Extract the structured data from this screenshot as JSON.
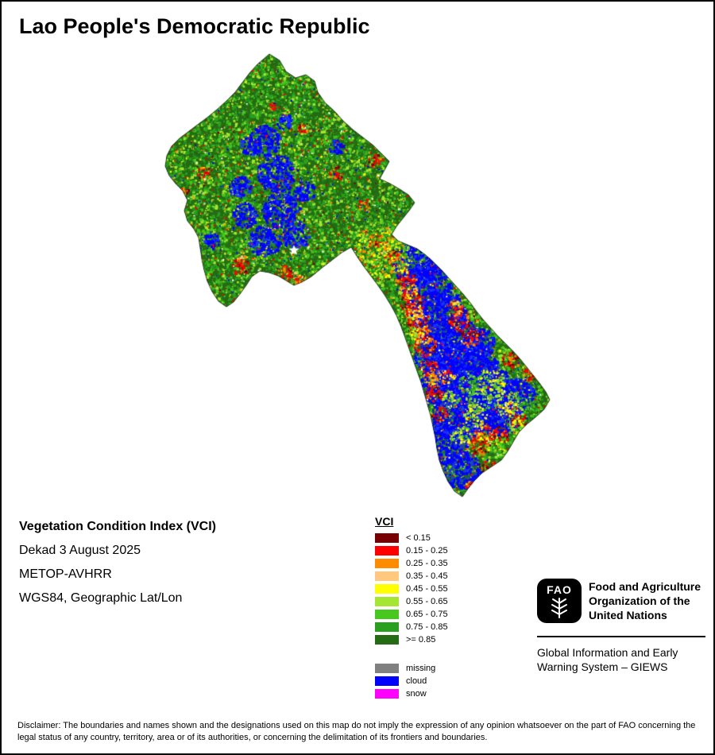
{
  "page": {
    "title": "Lao People's Democratic Republic"
  },
  "info_panel": {
    "line1": "Vegetation Condition Index (VCI)",
    "line2": "Dekad 3 August 2025",
    "line3": "METOP-AVHRR",
    "line4": "WGS84, Geographic Lat/Lon"
  },
  "legend": {
    "title": "VCI",
    "classes": [
      {
        "label": "< 0.15",
        "color": "#780000"
      },
      {
        "label": "0.15 - 0.25",
        "color": "#FF0000"
      },
      {
        "label": "0.25 - 0.35",
        "color": "#FF8C00"
      },
      {
        "label": "0.35 - 0.45",
        "color": "#FFC87D"
      },
      {
        "label": "0.45 - 0.55",
        "color": "#FFFF00"
      },
      {
        "label": "0.55 - 0.65",
        "color": "#A5E632"
      },
      {
        "label": "0.65 - 0.75",
        "color": "#46C81E"
      },
      {
        "label": "0.75 - 0.85",
        "color": "#28A01E"
      },
      {
        "label": ">= 0.85",
        "color": "#256B14"
      }
    ],
    "special": [
      {
        "label": "missing",
        "color": "#808080"
      },
      {
        "label": "cloud",
        "color": "#0000FF"
      },
      {
        "label": "snow",
        "color": "#FF00FF"
      }
    ]
  },
  "fao_block": {
    "logo_text": "FAO",
    "org_name": "Food and Agriculture\nOrganization of the\nUnited Nations",
    "giews_name": "Global Information and Early\nWarning System – GIEWS"
  },
  "disclaimer": "Disclaimer: The boundaries and names shown and the designations used on this map do not imply the expression of any opinion whatsoever on the part of FAO concerning the legal status of any country, territory, area or of its authorities, or concerning the delimitation of its frontiers and boundaries."
}
